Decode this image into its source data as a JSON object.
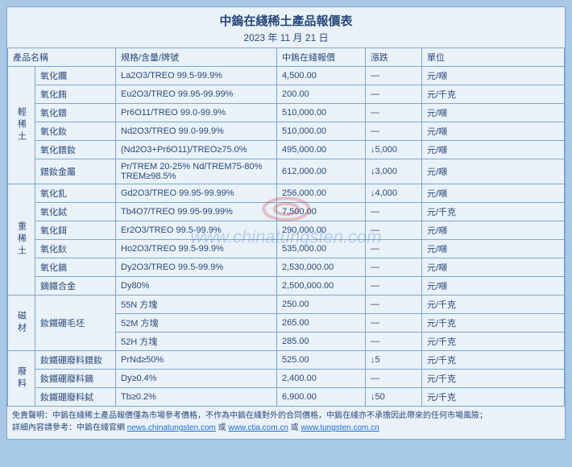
{
  "title": "中鎢在綫稀土產品報價表",
  "date": "2023 年 11 月 21 日",
  "headers": {
    "name": "產品名稱",
    "spec": "規格/含量/牌號",
    "price": "中鎢在綫報價",
    "change": "漲跌",
    "unit": "單位"
  },
  "groups": [
    {
      "label": "輕稀土",
      "rows": [
        {
          "name": "氧化鑭",
          "spec": "La2O3/TREO 99.5-99.9%",
          "price": "4,500.00",
          "change": "—",
          "unit": "元/噸"
        },
        {
          "name": "氧化銪",
          "spec": "Eu2O3/TREO 99.95-99.99%",
          "price": "200.00",
          "change": "—",
          "unit": "元/千克"
        },
        {
          "name": "氧化鐠",
          "spec": "Pr6O11/TREO 99.0-99.9%",
          "price": "510,000.00",
          "change": "—",
          "unit": "元/噸"
        },
        {
          "name": "氧化釹",
          "spec": "Nd2O3/TREO 99.0-99.9%",
          "price": "510,000.00",
          "change": "—",
          "unit": "元/噸"
        },
        {
          "name": "氧化鐠釹",
          "spec": "(Nd2O3+Pr6O11)/TREO≥75.0%",
          "price": "495,000.00",
          "change": "↓5,000",
          "unit": "元/噸"
        },
        {
          "name": "鐠釹金屬",
          "spec": "Pr/TREM 20-25% Nd/TREM75-80% TREM≥98.5%",
          "price": "612,000.00",
          "change": "↓3,000",
          "unit": "元/噸"
        }
      ]
    },
    {
      "label": "重稀土",
      "rows": [
        {
          "name": "氧化釓",
          "spec": "Gd2O3/TREO 99.95-99.99%",
          "price": "256,000.00",
          "change": "↓4,000",
          "unit": "元/噸"
        },
        {
          "name": "氧化鋱",
          "spec": "Tb4O7/TREO 99.95-99.99%",
          "price": "7,500.00",
          "change": "—",
          "unit": "元/千克"
        },
        {
          "name": "氧化鉺",
          "spec": "Er2O3/TREO 99.5-99.9%",
          "price": "290,000.00",
          "change": "—",
          "unit": "元/噸"
        },
        {
          "name": "氧化鈥",
          "spec": "Ho2O3/TREO 99.5-99.9%",
          "price": "535,000.00",
          "change": "—",
          "unit": "元/噸"
        },
        {
          "name": "氧化鏑",
          "spec": "Dy2O3/TREO 99.5-99.9%",
          "price": "2,530,000.00",
          "change": "—",
          "unit": "元/噸"
        },
        {
          "name": "鏑鐵合金",
          "spec": "Dy80%",
          "price": "2,500,000.00",
          "change": "—",
          "unit": "元/噸"
        }
      ]
    },
    {
      "label": "磁材",
      "rows": [
        {
          "name": "釹鐵硼毛坯",
          "spec": "55N 方塊",
          "price": "250.00",
          "change": "—",
          "unit": "元/千克",
          "namerowspan": 3
        },
        {
          "name": "",
          "spec": "52M 方塊",
          "price": "265.00",
          "change": "—",
          "unit": "元/千克"
        },
        {
          "name": "",
          "spec": "52H 方塊",
          "price": "285.00",
          "change": "—",
          "unit": "元/千克"
        }
      ]
    },
    {
      "label": "廢料",
      "rows": [
        {
          "name": "釹鐵硼廢料鐠釹",
          "spec": "PrNd≥50%",
          "price": "525.00",
          "change": "↓5",
          "unit": "元/千克"
        },
        {
          "name": "釹鐵硼廢料鏑",
          "spec": "Dy≥0.4%",
          "price": "2,400.00",
          "change": "—",
          "unit": "元/千克"
        },
        {
          "name": "釹鐵硼廢料鋱",
          "spec": "Tb≥0.2%",
          "price": "6,900.00",
          "change": "↓50",
          "unit": "元/千克"
        }
      ]
    }
  ],
  "footer": {
    "disclaimer": "免責聲明：中鎢在綫稀土產品報價僅為市場參考價格，不作為中鎢在綫對外的合同價格，中鎢在綫亦不承擔因此帶來的任何市場風險；",
    "details_prefix": "詳細內容請參考：中鎢在綫官網 ",
    "link1": "news.chinatungsten.com",
    "link2": "www.ctia.com.cn",
    "link3": "www.tungsten.com.cn",
    "or": " 或 "
  },
  "watermark": {
    "url": "www.chinatungsten.com"
  },
  "colors": {
    "bg": "#a8c8e8",
    "panel": "#eaf1f9",
    "border": "#7ba8d0",
    "text": "#2a4a7a",
    "link": "#1a6fd4"
  }
}
